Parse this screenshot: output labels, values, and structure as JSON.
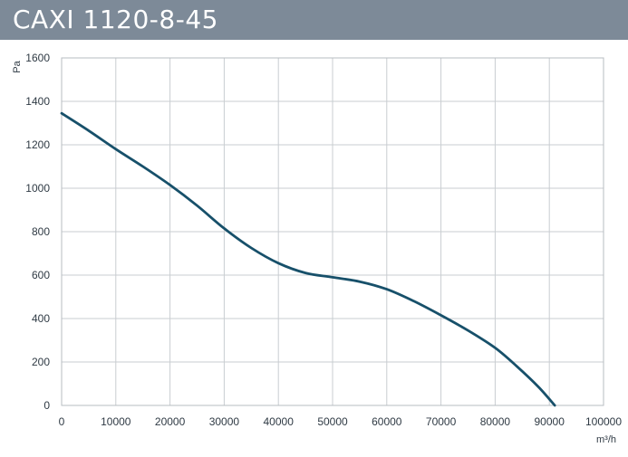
{
  "header": {
    "title": "CAXI 1120-8-45"
  },
  "colors": {
    "title_bar": "#7d8a98",
    "title_text": "#ffffff",
    "grid": "#c9cdd1",
    "frame": "#b7bcc1",
    "curve": "#17506a",
    "tick_text": "#2f3a44"
  },
  "chart_data": {
    "type": "line",
    "title": "CAXI 1120-8-45",
    "xlabel": "m³/h",
    "ylabel": "Pa",
    "xlim": [
      0,
      100000
    ],
    "ylim": [
      0,
      1600
    ],
    "grid": true,
    "x_ticks": [
      "0",
      "10000",
      "20000",
      "30000",
      "40000",
      "50000",
      "60000",
      "70000",
      "80000",
      "90000",
      "100000"
    ],
    "y_ticks": [
      "0",
      "200",
      "400",
      "600",
      "800",
      "1000",
      "1200",
      "1400",
      "1600"
    ],
    "series": [
      {
        "x": [
          0,
          5000,
          10000,
          15000,
          20000,
          25000,
          30000,
          35000,
          40000,
          45000,
          50000,
          55000,
          60000,
          65000,
          70000,
          75000,
          80000,
          84000,
          88000,
          91000
        ],
        "y": [
          1345,
          1265,
          1180,
          1100,
          1015,
          920,
          815,
          725,
          655,
          610,
          590,
          570,
          535,
          480,
          415,
          345,
          265,
          180,
          85,
          0
        ]
      }
    ]
  }
}
